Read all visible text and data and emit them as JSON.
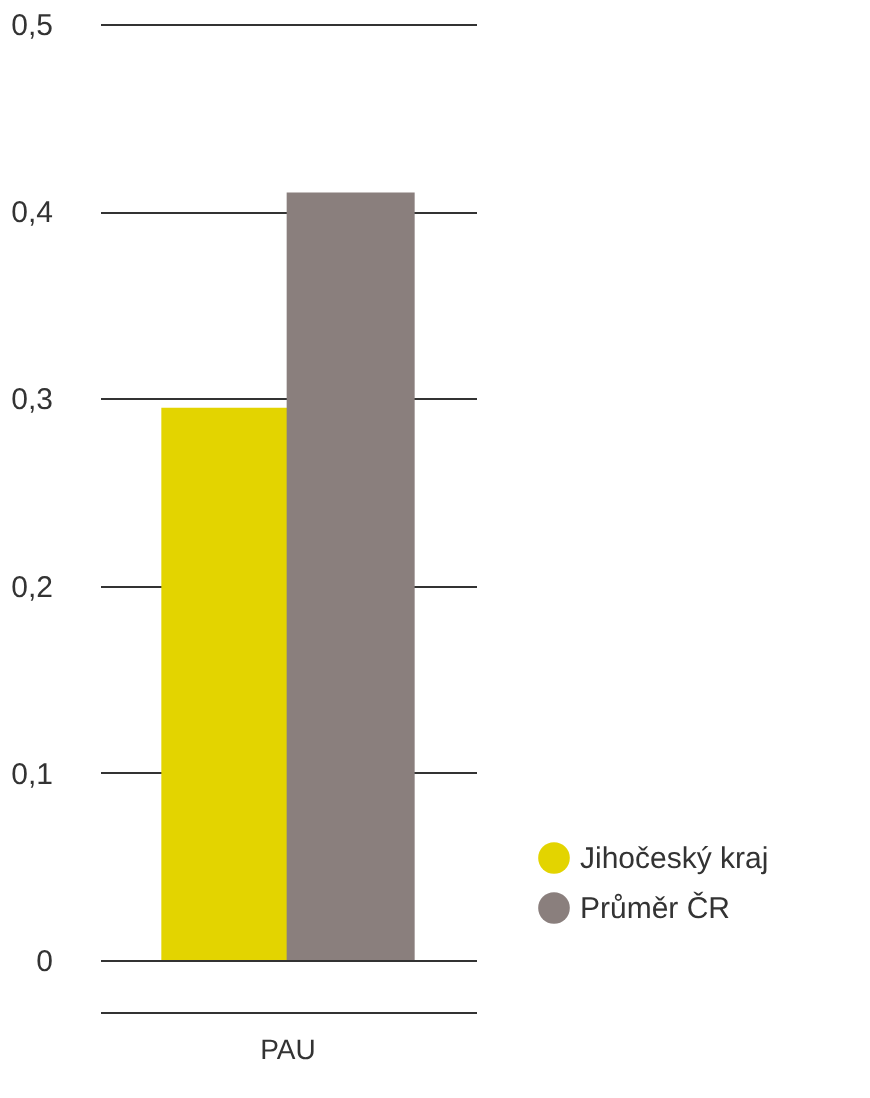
{
  "chart_data": {
    "type": "bar",
    "categories": [
      "PAU"
    ],
    "series": [
      {
        "name": "Jihočeský kraj",
        "color": "#e3d400",
        "values": [
          0.295
        ]
      },
      {
        "name": "Průměr ČR",
        "color": "#8a7f7d",
        "values": [
          0.41
        ]
      }
    ],
    "ylim": [
      0,
      0.5
    ],
    "yticks": [
      0,
      {
        "value": 0.1,
        "label": "0,1"
      },
      {
        "value": 0.2,
        "label": "0,2"
      },
      {
        "value": 0.3,
        "label": "0,3"
      },
      {
        "value": 0.4,
        "label": "0,4"
      },
      {
        "value": 0.5,
        "label": "0,5"
      }
    ],
    "grid": "y",
    "legend": "bottom right"
  }
}
